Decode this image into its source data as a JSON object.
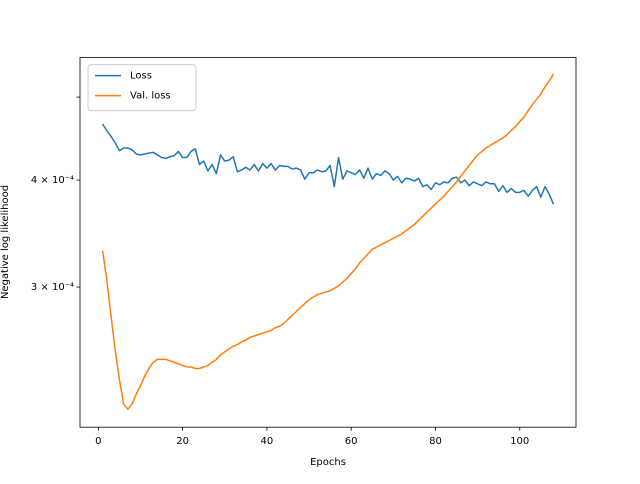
{
  "chart_data": {
    "type": "line",
    "xlabel": "Epochs",
    "ylabel": "Negative log likelihood",
    "x": [
      1,
      2,
      3,
      4,
      5,
      6,
      7,
      8,
      9,
      10,
      11,
      12,
      13,
      14,
      15,
      16,
      17,
      18,
      19,
      20,
      21,
      22,
      23,
      24,
      25,
      26,
      27,
      28,
      29,
      30,
      31,
      32,
      33,
      34,
      35,
      36,
      37,
      38,
      39,
      40,
      41,
      42,
      43,
      44,
      45,
      46,
      47,
      48,
      49,
      50,
      51,
      52,
      53,
      54,
      55,
      56,
      57,
      58,
      59,
      60,
      61,
      62,
      63,
      64,
      65,
      66,
      67,
      68,
      69,
      70,
      71,
      72,
      73,
      74,
      75,
      76,
      77,
      78,
      79,
      80,
      81,
      82,
      83,
      84,
      85,
      86,
      87,
      88,
      89,
      90,
      91,
      92,
      93,
      94,
      95,
      96,
      97,
      98,
      99,
      100,
      101,
      102,
      103,
      104,
      105,
      106,
      107,
      108
    ],
    "series": [
      {
        "name": "Loss",
        "color": "#1f77b4",
        "values": [
          0.000465,
          0.000457,
          0.00045,
          0.000442,
          0.000433,
          0.000436,
          0.000436,
          0.000434,
          0.000429,
          0.000428,
          0.000429,
          0.00043,
          0.000431,
          0.000428,
          0.000425,
          0.000424,
          0.000426,
          0.000427,
          0.000432,
          0.000425,
          0.000425,
          0.000432,
          0.000435,
          0.000417,
          0.000421,
          0.00041,
          0.000417,
          0.000407,
          0.000428,
          0.000421,
          0.000422,
          0.000426,
          0.000409,
          0.000411,
          0.000414,
          0.000411,
          0.000417,
          0.00041,
          0.000418,
          0.000413,
          0.000418,
          0.000411,
          0.000416,
          0.000415,
          0.000415,
          0.000412,
          0.000413,
          0.000411,
          0.000401,
          0.000408,
          0.000408,
          0.000411,
          0.000409,
          0.00041,
          0.000416,
          0.000393,
          0.000425,
          0.000401,
          0.00041,
          0.000408,
          0.000406,
          0.000411,
          0.000402,
          0.000413,
          0.000401,
          0.000407,
          0.000405,
          0.00041,
          0.000407,
          0.0004,
          0.000404,
          0.000397,
          0.000402,
          0.000401,
          0.000399,
          0.000402,
          0.000393,
          0.000395,
          0.00039,
          0.000397,
          0.000395,
          0.000398,
          0.000397,
          0.000402,
          0.000403,
          0.000397,
          0.0004,
          0.000394,
          0.000398,
          0.000396,
          0.000394,
          0.000398,
          0.000396,
          0.000396,
          0.000388,
          0.000394,
          0.000387,
          0.000391,
          0.000387,
          0.000387,
          0.000389,
          0.000383,
          0.000389,
          0.000393,
          0.000382,
          0.000393,
          0.000385,
          0.000375
        ]
      },
      {
        "name": "Val. loss",
        "color": "#ff7f0e",
        "values": [
          0.000331,
          0.000306,
          0.000278,
          0.000253,
          0.000234,
          0.000219,
          0.000216,
          0.000219,
          0.000225,
          0.00023,
          0.000236,
          0.000241,
          0.000245,
          0.000247,
          0.000247,
          0.000247,
          0.000246,
          0.000245,
          0.000244,
          0.000243,
          0.000242,
          0.000242,
          0.000241,
          0.000241,
          0.000242,
          0.000243,
          0.000245,
          0.000247,
          0.00025,
          0.000252,
          0.000254,
          0.000256,
          0.000257,
          0.000259,
          0.00026,
          0.000262,
          0.000263,
          0.000264,
          0.000265,
          0.000266,
          0.000267,
          0.000269,
          0.00027,
          0.000272,
          0.000275,
          0.000278,
          0.000281,
          0.000284,
          0.000287,
          0.00029,
          0.000292,
          0.000294,
          0.000295,
          0.000296,
          0.000297,
          0.000299,
          0.000301,
          0.000304,
          0.000307,
          0.000311,
          0.000315,
          0.00032,
          0.000324,
          0.000328,
          0.000332,
          0.000334,
          0.000336,
          0.000338,
          0.00034,
          0.000342,
          0.000344,
          0.000346,
          0.000349,
          0.000352,
          0.000355,
          0.000359,
          0.000363,
          0.000367,
          0.000371,
          0.000375,
          0.000379,
          0.000383,
          0.000388,
          0.000393,
          0.000398,
          0.000404,
          0.00041,
          0.000416,
          0.000422,
          0.000428,
          0.000432,
          0.000436,
          0.000439,
          0.000442,
          0.000445,
          0.000448,
          0.000452,
          0.000457,
          0.000462,
          0.000468,
          0.000474,
          0.000482,
          0.00049,
          0.000497,
          0.000504,
          0.000514,
          0.000522,
          0.000532
        ]
      }
    ],
    "xlim": [
      -4.35,
      113.35
    ],
    "xticks": [
      0,
      20,
      40,
      60,
      80,
      100
    ],
    "ylim": [
      0.0002058,
      0.000556
    ],
    "yscale": "log",
    "yticks": [
      {
        "value": 0.0003,
        "label": "3 × 10⁻⁴"
      },
      {
        "value": 0.0004,
        "label": "4 × 10⁻⁴"
      },
      0.0005
    ],
    "legend": "upper left",
    "grid": false
  }
}
